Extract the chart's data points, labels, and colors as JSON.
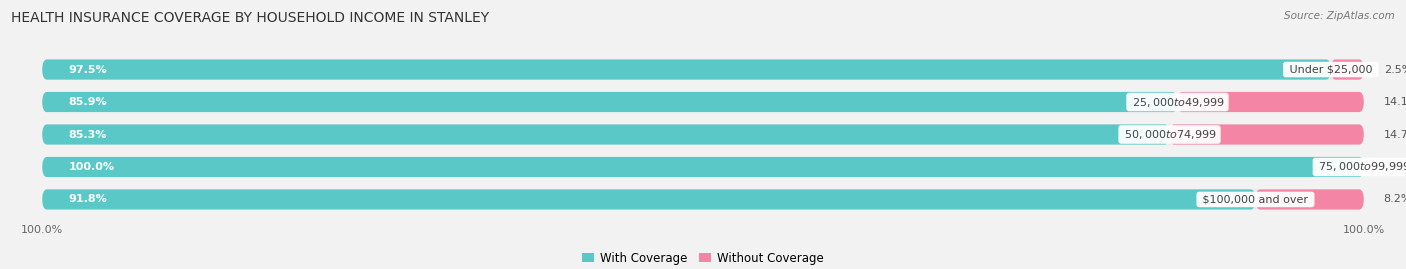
{
  "title": "HEALTH INSURANCE COVERAGE BY HOUSEHOLD INCOME IN STANLEY",
  "source_text": "Source: ZipAtlas.com",
  "categories": [
    "Under $25,000",
    "$25,000 to $49,999",
    "$50,000 to $74,999",
    "$75,000 to $99,999",
    "$100,000 and over"
  ],
  "with_coverage": [
    97.5,
    85.9,
    85.3,
    100.0,
    91.8
  ],
  "without_coverage": [
    2.5,
    14.1,
    14.7,
    0.0,
    8.2
  ],
  "coverage_color": "#5bc8c8",
  "no_coverage_color": "#f585a5",
  "bg_color": "#f2f2f2",
  "bar_bg_color": "#e0e0e0",
  "row_bg_color": "#e8e8e8",
  "title_fontsize": 10,
  "label_fontsize": 8,
  "tick_fontsize": 8,
  "legend_fontsize": 8.5,
  "xlim_max": 100,
  "bar_height": 0.62,
  "bottom_tick_left": "100.0%",
  "bottom_tick_right": "100.0%"
}
